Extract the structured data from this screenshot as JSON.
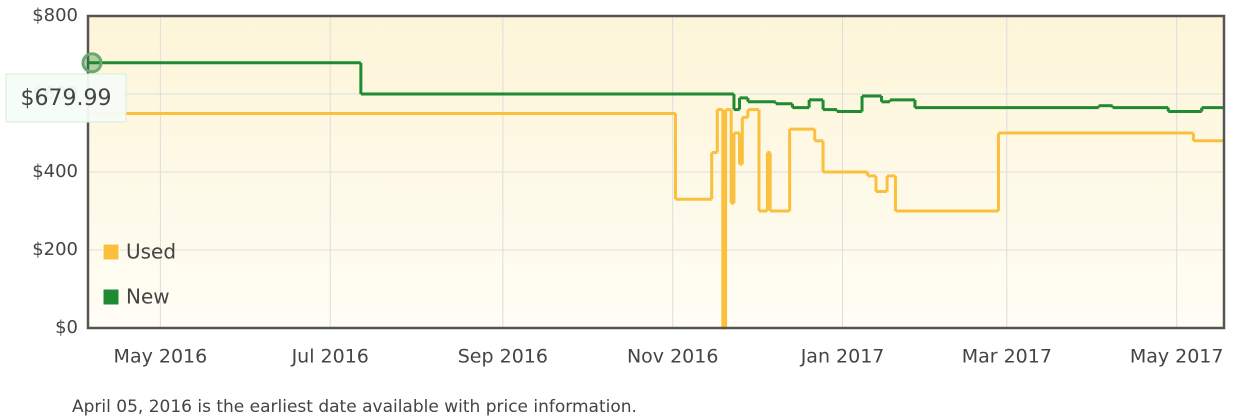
{
  "chart_data": {
    "type": "line",
    "step": true,
    "xlim": [
      "2016-04-05",
      "2017-05-18"
    ],
    "xticks": [
      {
        "value": "2016-05",
        "label": "May 2016"
      },
      {
        "value": "2016-07",
        "label": "Jul 2016"
      },
      {
        "value": "2016-09",
        "label": "Sep 2016"
      },
      {
        "value": "2016-11",
        "label": "Nov 2016"
      },
      {
        "value": "2017-01",
        "label": "Jan 2017"
      },
      {
        "value": "2017-03",
        "label": "Mar 2017"
      },
      {
        "value": "2017-05",
        "label": "May 2017"
      }
    ],
    "ylim": [
      0,
      800
    ],
    "yticks": [
      {
        "value": 0,
        "label": "$0"
      },
      {
        "value": 200,
        "label": "$200"
      },
      {
        "value": 400,
        "label": "$400"
      },
      {
        "value": 600,
        "label": "$600"
      },
      {
        "value": 800,
        "label": "$800"
      }
    ],
    "grid": true,
    "legend": "lower left",
    "series": [
      {
        "name": "Used",
        "color": "#fbbf3e",
        "x": [
          "2016-04-05",
          "2016-11-02",
          "2016-11-15",
          "2016-11-17",
          "2016-11-19",
          "2016-11-20",
          "2016-11-22",
          "2016-11-23",
          "2016-11-25",
          "2016-11-26",
          "2016-11-28",
          "2016-12-02",
          "2016-12-05",
          "2016-12-06",
          "2016-12-13",
          "2016-12-22",
          "2016-12-25",
          "2017-01-10",
          "2017-01-13",
          "2017-01-17",
          "2017-01-20",
          "2017-02-26",
          "2017-05-07"
        ],
        "values": [
          550,
          330,
          450,
          560,
          0,
          560,
          320,
          500,
          420,
          540,
          560,
          300,
          450,
          300,
          510,
          480,
          400,
          390,
          350,
          390,
          300,
          500,
          480
        ]
      },
      {
        "name": "New",
        "color": "#1e8a32",
        "x": [
          "2016-04-05",
          "2016-07-12",
          "2016-11-23",
          "2016-11-25",
          "2016-11-28",
          "2016-12-08",
          "2016-12-14",
          "2016-12-20",
          "2016-12-25",
          "2016-12-30",
          "2017-01-08",
          "2017-01-15",
          "2017-01-18",
          "2017-01-27",
          "2017-04-03",
          "2017-04-08",
          "2017-04-28",
          "2017-05-10"
        ],
        "values": [
          680,
          600,
          560,
          590,
          580,
          575,
          565,
          585,
          560,
          555,
          595,
          580,
          585,
          565,
          570,
          565,
          555,
          565
        ]
      }
    ],
    "annotation": "$679.99",
    "footnote": "April 05, 2016 is the earliest date available with price information."
  }
}
